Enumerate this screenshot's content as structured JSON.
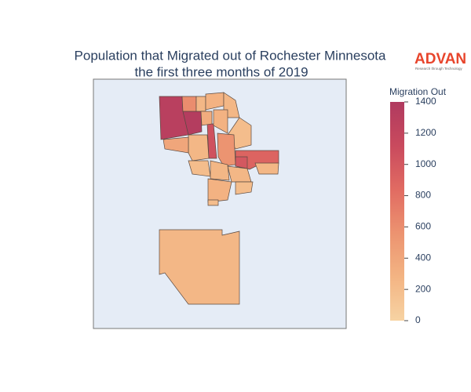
{
  "chart_data": {
    "type": "choropleth",
    "title": "Population that Migrated out of Rochester Minnesota",
    "subtitle": "the first three months of 2019",
    "values": [
      1300,
      1350,
      600,
      1050,
      900,
      250,
      250,
      300,
      250,
      200,
      350,
      300,
      250,
      550,
      400,
      200,
      250,
      250,
      300,
      200,
      200,
      1000,
      250
    ],
    "colorbar": {
      "title": "Migration Out",
      "range": [
        0,
        1400
      ],
      "ticks": [
        0,
        200,
        400,
        600,
        800,
        1000,
        1200,
        1400
      ],
      "colors": [
        "#f7d3a3",
        "#f3b483",
        "#ec9370",
        "#e16b62",
        "#c94a5e",
        "#b03a5f"
      ]
    },
    "background": "#e5ecf6",
    "logo": {
      "name": "ADVAN",
      "tagline": "Research through Technology"
    }
  }
}
